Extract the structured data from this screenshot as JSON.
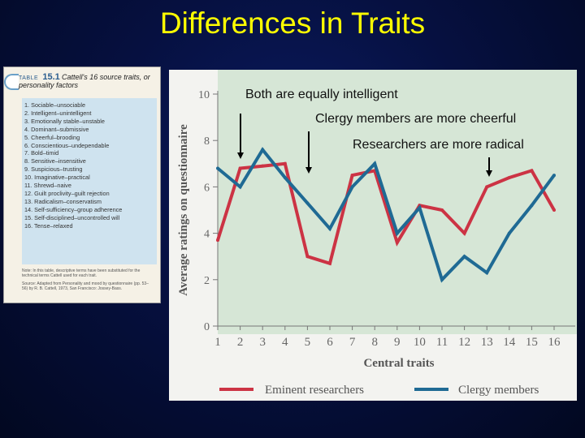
{
  "slide": {
    "title": "Differences in Traits",
    "annotations": [
      "Both are equally intelligent",
      "Clergy members are more cheerful",
      "Researchers are more radical"
    ]
  },
  "table": {
    "label": "TABLE",
    "number": "15.1",
    "caption": "Cattell's 16 source traits, or personality factors",
    "traits": [
      "1. Sociable–unsociable",
      "2. Intelligent–unintelligent",
      "3. Emotionally stable–unstable",
      "4. Dominant–submissive",
      "5. Cheerful–brooding",
      "6. Conscientious–undependable",
      "7. Bold–timid",
      "8. Sensitive–insensitive",
      "9. Suspicious–trusting",
      "10. Imaginative–practical",
      "11. Shrewd–naive",
      "12. Guilt proclivity–guilt rejection",
      "13. Radicalism–conservatism",
      "14. Self-sufficiency–group adherence",
      "15. Self-disciplined–uncontrolled will",
      "16. Tense–relaxed"
    ],
    "note": "Note: In this table, descriptive terms have been substituted for the technical terms Cattell used for each trait.",
    "source": "Source: Adapted from Personality and mood by questionnaire (pp. 53–56) by R. B. Cattell, 1973, San Francisco: Jossey-Bass."
  },
  "chart_data": {
    "type": "line",
    "xlabel": "Central traits",
    "ylabel": "Average ratings on questionnaire",
    "x": [
      1,
      2,
      3,
      4,
      5,
      6,
      7,
      8,
      9,
      10,
      11,
      12,
      13,
      14,
      15,
      16
    ],
    "ylim": [
      0,
      10
    ],
    "yticks": [
      0,
      2,
      4,
      6,
      8,
      10
    ],
    "grid": false,
    "legend_position": "bottom",
    "colors": {
      "Eminent researchers": "#cc3344",
      "Clergy members": "#1f6a94",
      "background": "#d6e6d6"
    },
    "series": [
      {
        "name": "Eminent researchers",
        "values": [
          3.7,
          6.8,
          6.9,
          7.0,
          3.0,
          2.7,
          6.5,
          6.7,
          3.6,
          5.2,
          5.0,
          4.0,
          6.0,
          6.4,
          6.7,
          5.0
        ]
      },
      {
        "name": "Clergy members",
        "values": [
          6.8,
          6.0,
          7.6,
          6.4,
          5.3,
          4.2,
          6.0,
          7.0,
          4.0,
          5.1,
          2.0,
          3.0,
          2.3,
          4.0,
          5.2,
          6.5
        ]
      }
    ]
  }
}
